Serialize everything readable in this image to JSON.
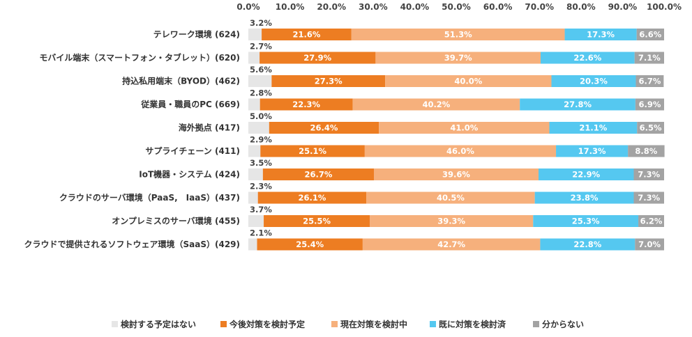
{
  "chart_data": {
    "type": "bar",
    "orientation": "horizontal",
    "stacked": true,
    "xlim": [
      0,
      100
    ],
    "x_ticks": [
      "0.0%",
      "10.0%",
      "20.0%",
      "30.0%",
      "40.0%",
      "50.0%",
      "60.0%",
      "70.0%",
      "80.0%",
      "90.0%",
      "100.0%"
    ],
    "x_axis_position": "top",
    "grid": false,
    "legend_position": "bottom",
    "categories": [
      "テレワーク環境 (624)",
      "モバイル端末（スマートフォン・タブレット）(620)",
      "持込私用端末（BYOD）(462)",
      "従業員・職員のPC (669)",
      "海外拠点 (417)",
      "サプライチェーン (411)",
      "IoT機器・システム (424)",
      "クラウドのサーバ環境（PaaS,　IaaS）(437)",
      "オンプレミスのサーバ環境 (455)",
      "クラウドで提供されるソフトウェア環境（SaaS）(429)"
    ],
    "series": [
      {
        "name": "検討する予定はない",
        "color": "#e6e6e6",
        "label_outside": true,
        "values": [
          3.2,
          2.7,
          5.6,
          2.8,
          5.0,
          2.9,
          3.5,
          2.3,
          3.7,
          2.1
        ],
        "labels": [
          "3.2%",
          "2.7%",
          "5.6%",
          "2.8%",
          "5.0%",
          "2.9%",
          "3.5%",
          "2.3%",
          "3.7%",
          "2.1%"
        ]
      },
      {
        "name": "今後対策を検討予定",
        "color": "#ed7d22",
        "values": [
          21.6,
          27.9,
          27.3,
          22.3,
          26.4,
          25.1,
          26.7,
          26.1,
          25.5,
          25.4
        ],
        "labels": [
          "21.6%",
          "27.9%",
          "27.3%",
          "22.3%",
          "26.4%",
          "25.1%",
          "26.7%",
          "26.1%",
          "25.5%",
          "25.4%"
        ]
      },
      {
        "name": "現在対策を検討中",
        "color": "#f6b07c",
        "values": [
          51.3,
          39.7,
          40.0,
          40.2,
          41.0,
          46.0,
          39.6,
          40.5,
          39.3,
          42.7
        ],
        "labels": [
          "51.3%",
          "39.7%",
          "40.0%",
          "40.2%",
          "41.0%",
          "46.0%",
          "39.6%",
          "40.5%",
          "39.3%",
          "42.7%"
        ]
      },
      {
        "name": "既に対策を検討済",
        "color": "#55c8f0",
        "values": [
          17.3,
          22.6,
          20.3,
          27.8,
          21.1,
          17.3,
          22.9,
          23.8,
          25.3,
          22.8
        ],
        "labels": [
          "17.3%",
          "22.6%",
          "20.3%",
          "27.8%",
          "21.1%",
          "17.3%",
          "22.9%",
          "23.8%",
          "25.3%",
          "22.8%"
        ]
      },
      {
        "name": "分からない",
        "color": "#a3a3a3",
        "values": [
          6.6,
          7.1,
          6.7,
          6.9,
          6.5,
          8.8,
          7.3,
          7.3,
          6.2,
          7.0
        ],
        "labels": [
          "6.6%",
          "7.1%",
          "6.7%",
          "6.9%",
          "6.5%",
          "8.8%",
          "7.3%",
          "7.3%",
          "6.2%",
          "7.0%"
        ]
      }
    ]
  }
}
